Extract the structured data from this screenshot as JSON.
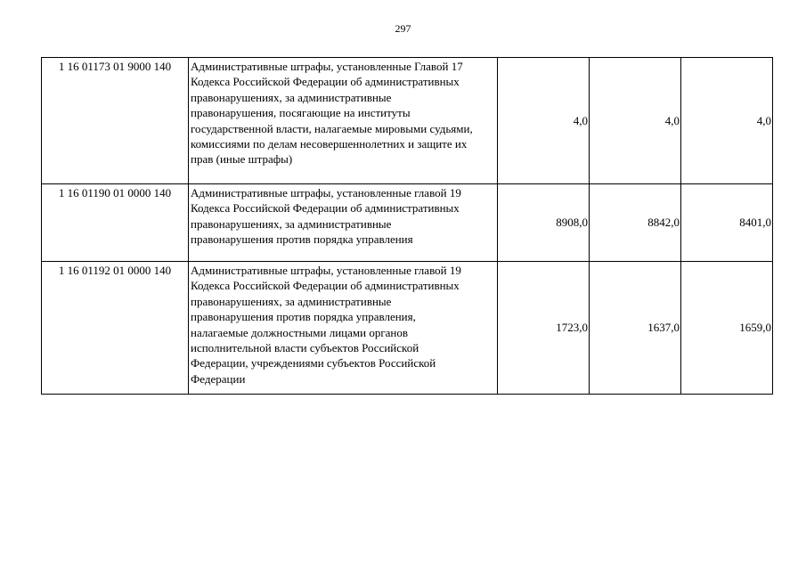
{
  "page_number": "297",
  "rows": [
    {
      "code": "1 16 01173 01 9000 140",
      "description": "Административные штрафы, установленные Главой 17\nКодекса Российской Федерации об административных\nправонарушениях, за административные\nправонарушения, посягающие на институты\nгосударственной власти, налагаемые мировыми судьями,\nкомиссиями по делам несовершеннолетних и защите их\nправ (иные штрафы)",
      "values": [
        "4,0",
        "4,0",
        "4,0"
      ]
    },
    {
      "code": "1 16 01190 01 0000 140",
      "description": "Административные штрафы, установленные главой 19\nКодекса Российской Федерации об административных\nправонарушениях, за административные\nправонарушения против порядка управления",
      "values": [
        "8908,0",
        "8842,0",
        "8401,0"
      ]
    },
    {
      "code": "1 16 01192 01 0000 140",
      "description": "Административные штрафы, установленные главой 19\nКодекса Российской Федерации об административных\nправонарушениях, за административные\nправонарушения против порядка управления,\nналагаемые должностными лицами органов\nисполнительной власти субъектов Российской\nФедерации, учреждениями субъектов Российской\nФедерации",
      "values": [
        "1723,0",
        "1637,0",
        "1659,0"
      ]
    }
  ]
}
